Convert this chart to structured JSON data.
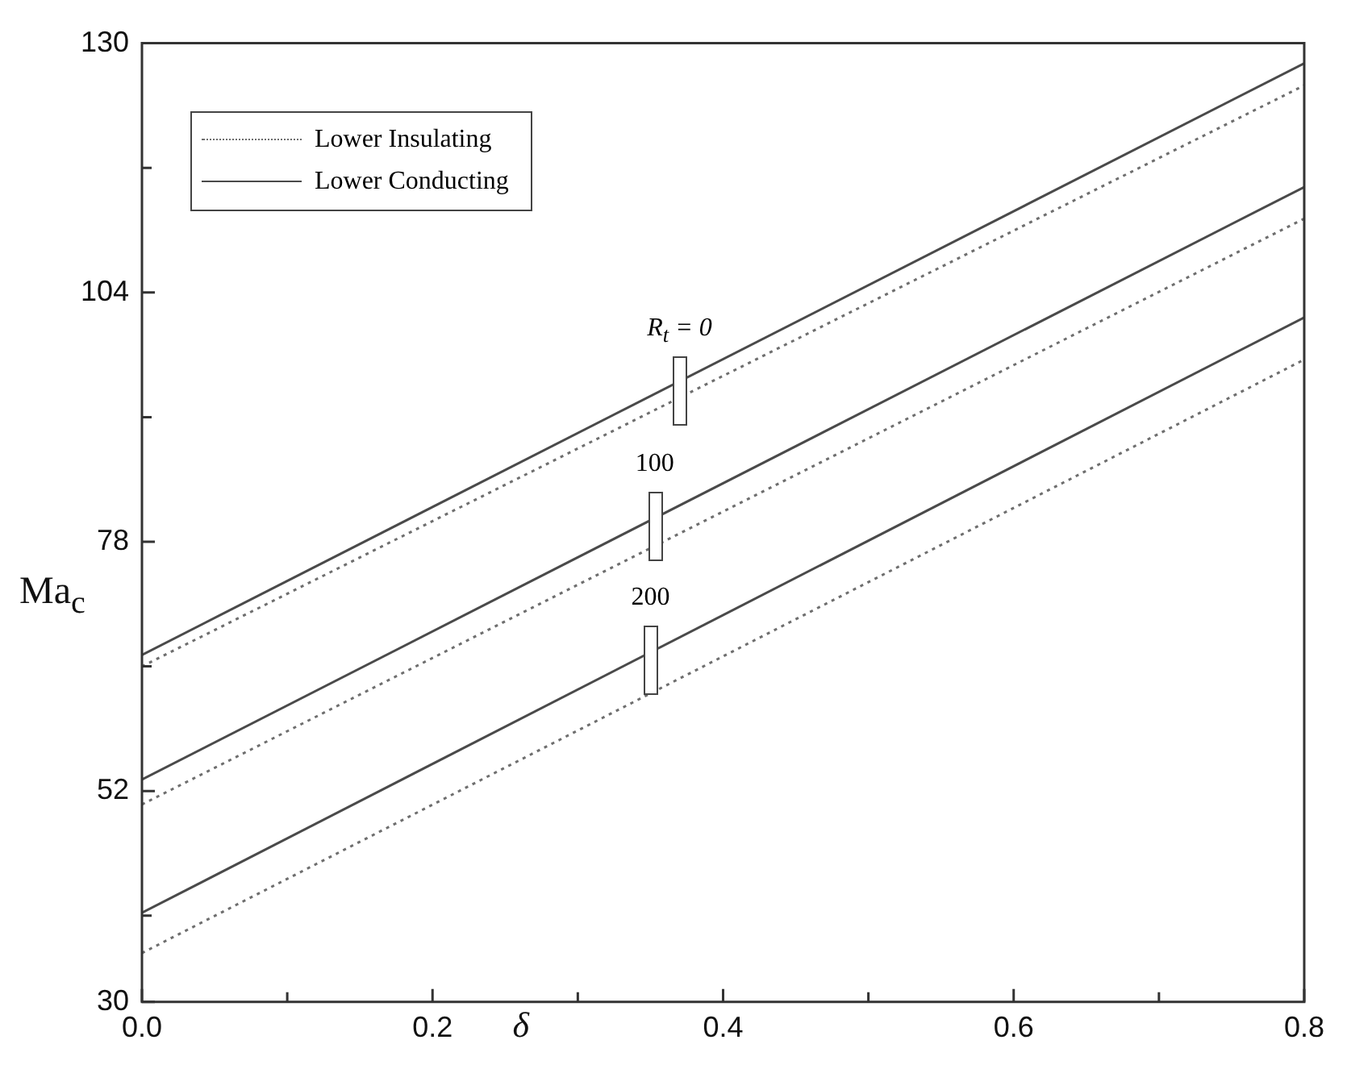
{
  "chart_data": {
    "type": "line",
    "xlabel": "δ",
    "ylabel": "Ma$_{c}$",
    "x": [
      0,
      0.8
    ],
    "series": [
      {
        "name": "Lower Insulating",
        "color": "#6e6e6e",
        "line_style": "dotted",
        "values": [
          65.0,
          125.6
        ]
      },
      {
        "name": "Lower Conducting",
        "color": "#4a4a4a",
        "line_style": "solid",
        "values": [
          66.2,
          127.9
        ]
      },
      {
        "color": "#6e6e6e",
        "line_style": "dotted",
        "values": [
          50.6,
          111.7
        ]
      },
      {
        "color": "#4a4a4a",
        "line_style": "solid",
        "values": [
          53.2,
          115.0
        ]
      },
      {
        "color": "#6e6e6e",
        "line_style": "dotted",
        "values": [
          35.1,
          97.0
        ]
      },
      {
        "color": "#4a4a4a",
        "line_style": "solid",
        "values": [
          39.3,
          101.4
        ]
      }
    ],
    "xlim": [
      0,
      0.8
    ],
    "xticks": [
      {
        "value": 0,
        "label": "0.0"
      },
      {
        "value": 0.1,
        "label": null
      },
      0.2,
      {
        "value": 0.3,
        "label": null
      },
      0.4,
      {
        "value": 0.5,
        "label": null
      },
      0.6,
      {
        "value": 0.7,
        "label": null
      },
      0.8
    ],
    "ylim": [
      30,
      130
    ],
    "yticks": [
      30,
      {
        "value": 39,
        "label": null
      },
      52,
      {
        "value": 65,
        "label": null
      },
      78,
      {
        "value": 91,
        "label": null
      },
      104,
      {
        "value": 117,
        "label": null
      },
      130
    ],
    "annotations": [
      {
        "text": "R$_{t}$ = 0",
        "x": 0.37,
        "y": 94.7
      },
      {
        "text": "100",
        "x": 0.353,
        "y": 80.5
      },
      {
        "text": "200",
        "x": 0.35,
        "y": 66.5
      }
    ],
    "legend": "top left",
    "grid": false,
    "marker": "none"
  }
}
